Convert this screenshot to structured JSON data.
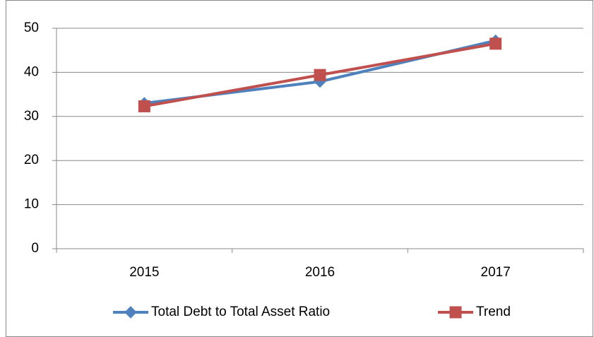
{
  "chart_data": {
    "type": "line",
    "categories": [
      "2015",
      "2016",
      "2017"
    ],
    "series": [
      {
        "name": "Total Debt to Total Asset Ratio",
        "color": "#4f81bd",
        "marker": "diamond",
        "values": [
          33.0,
          37.9,
          47.2
        ]
      },
      {
        "name": "Trend",
        "color": "#c0504d",
        "marker": "square",
        "values": [
          32.3,
          39.4,
          46.5
        ]
      }
    ],
    "ylim": [
      0,
      50
    ],
    "yticks": [
      0,
      10,
      20,
      30,
      40,
      50
    ],
    "grid": true,
    "legend": "bottom"
  }
}
